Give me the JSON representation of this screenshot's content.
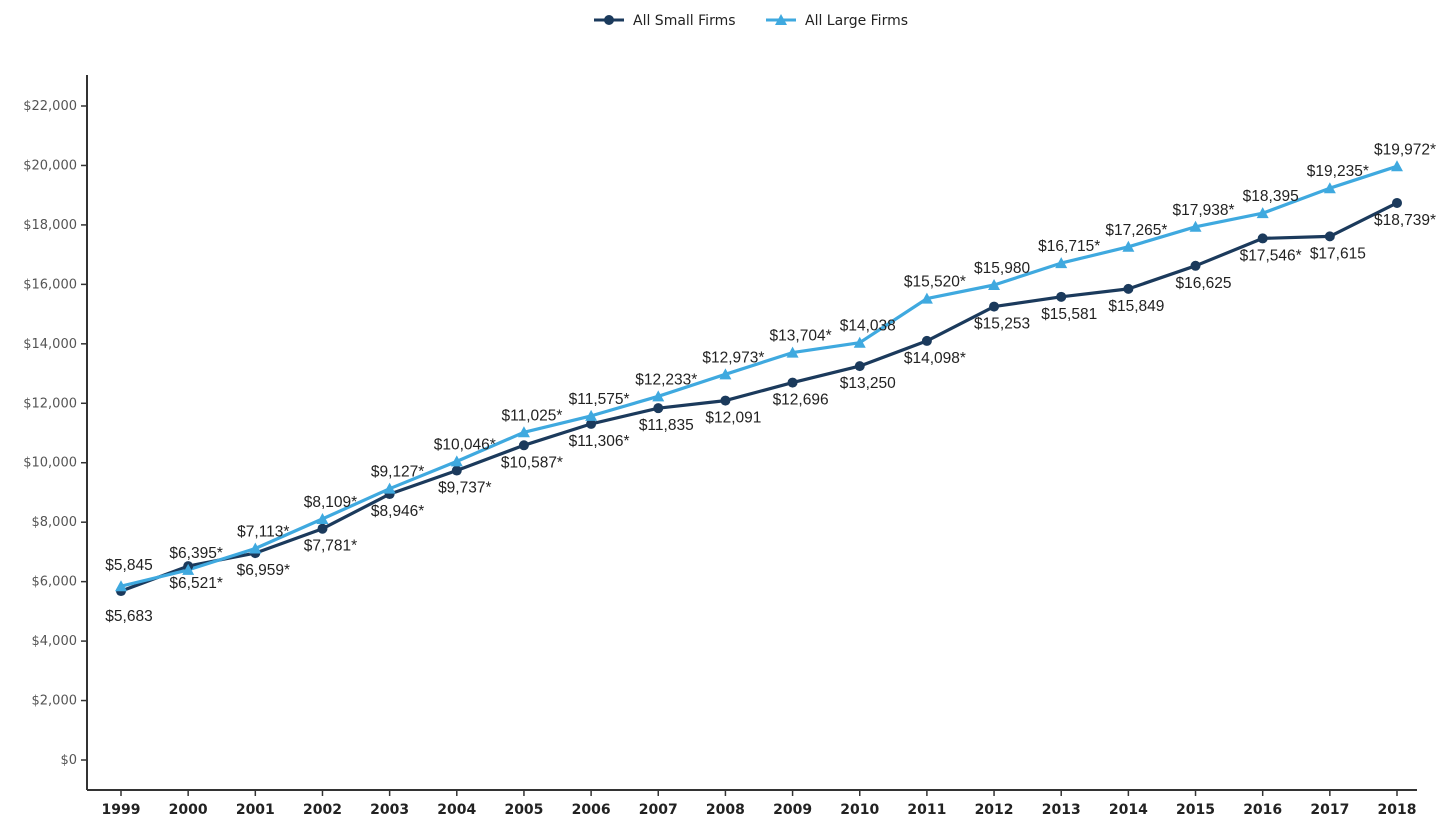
{
  "chart_data": {
    "type": "line",
    "title": "",
    "xlabel": "",
    "ylabel": "",
    "x": [
      "1999",
      "2000",
      "2001",
      "2002",
      "2003",
      "2004",
      "2005",
      "2006",
      "2007",
      "2008",
      "2009",
      "2010",
      "2011",
      "2012",
      "2013",
      "2014",
      "2015",
      "2016",
      "2017",
      "2018"
    ],
    "ylim": [
      0,
      22000
    ],
    "yticks": [
      0,
      2000,
      4000,
      6000,
      8000,
      10000,
      12000,
      14000,
      16000,
      18000,
      20000,
      22000
    ],
    "ytick_labels": [
      "$0",
      "$2,000",
      "$4,000",
      "$6,000",
      "$8,000",
      "$10,000",
      "$12,000",
      "$14,000",
      "$16,000",
      "$18,000",
      "$20,000",
      "$22,000"
    ],
    "grid": false,
    "legend_position": "top-center",
    "series": [
      {
        "name": "All Small Firms",
        "color": "#1b3a5c",
        "marker": "circle",
        "values": [
          5683,
          6521,
          6959,
          7781,
          8946,
          9737,
          10587,
          11306,
          11835,
          12091,
          12696,
          13250,
          14098,
          15253,
          15581,
          15849,
          16625,
          17546,
          17615,
          18739
        ],
        "labels": [
          "$5,683",
          "$6,521*",
          "$6,959*",
          "$7,781*",
          "$8,946*",
          "$9,737*",
          "$10,587*",
          "$11,306*",
          "$11,835",
          "$12,091",
          "$12,696",
          "$13,250",
          "$14,098*",
          "$15,253",
          "$15,581",
          "$15,849",
          "$16,625",
          "$17,546*",
          "$17,615",
          "$18,739*"
        ]
      },
      {
        "name": "All Large Firms",
        "color": "#3fa9df",
        "marker": "triangle",
        "values": [
          5845,
          6395,
          7113,
          8109,
          9127,
          10046,
          11025,
          11575,
          12233,
          12973,
          13704,
          14038,
          15520,
          15980,
          16715,
          17265,
          17938,
          18395,
          19235,
          19972
        ],
        "labels": [
          "$5,845",
          "$6,395*",
          "$7,113*",
          "$8,109*",
          "$9,127*",
          "$10,046*",
          "$11,025*",
          "$11,575*",
          "$12,233*",
          "$12,973*",
          "$13,704*",
          "$14,038",
          "$15,520*",
          "$15,980",
          "$16,715*",
          "$17,265*",
          "$17,938*",
          "$18,395",
          "$19,235*",
          "$19,972*"
        ]
      }
    ]
  }
}
